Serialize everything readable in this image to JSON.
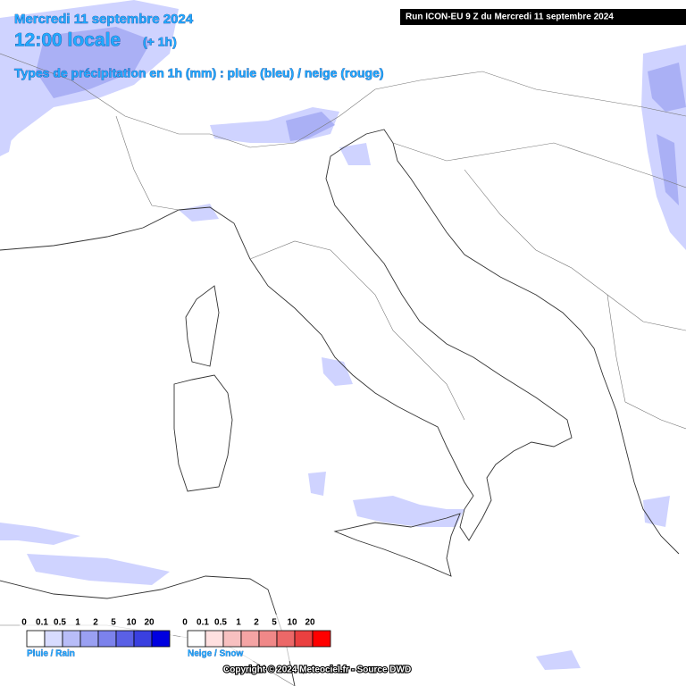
{
  "header": {
    "date": "Mercredi 11 septembre 2024",
    "time": "12:00 locale",
    "offset": "(+ 1h)",
    "subtitle": "Types de précipitation en 1h (mm) : pluie (bleu) / neige (rouge)"
  },
  "run_banner": "Run ICON-EU 9 Z du Mercredi 11 septembre 2024",
  "legends": [
    {
      "label": "Pluie / Rain",
      "ticks": [
        0,
        0.1,
        0.5,
        1,
        2,
        5,
        10,
        20
      ],
      "colors": [
        "#ffffff",
        "#d8dcff",
        "#b8bdf8",
        "#9aa0f2",
        "#7c82ec",
        "#5a60e6",
        "#3a40e0",
        "#0000e0"
      ]
    },
    {
      "label": "Neige / Snow",
      "ticks": [
        0,
        0.1,
        0.5,
        1,
        2,
        5,
        10,
        20
      ],
      "colors": [
        "#ffffff",
        "#ffe0e0",
        "#f8c0c0",
        "#f4a4a4",
        "#f08888",
        "#ec6868",
        "#ea4040",
        "#ff0000"
      ]
    }
  ],
  "footer": "Copyright © 2024 Meteociel.fr - Source DWD"
}
